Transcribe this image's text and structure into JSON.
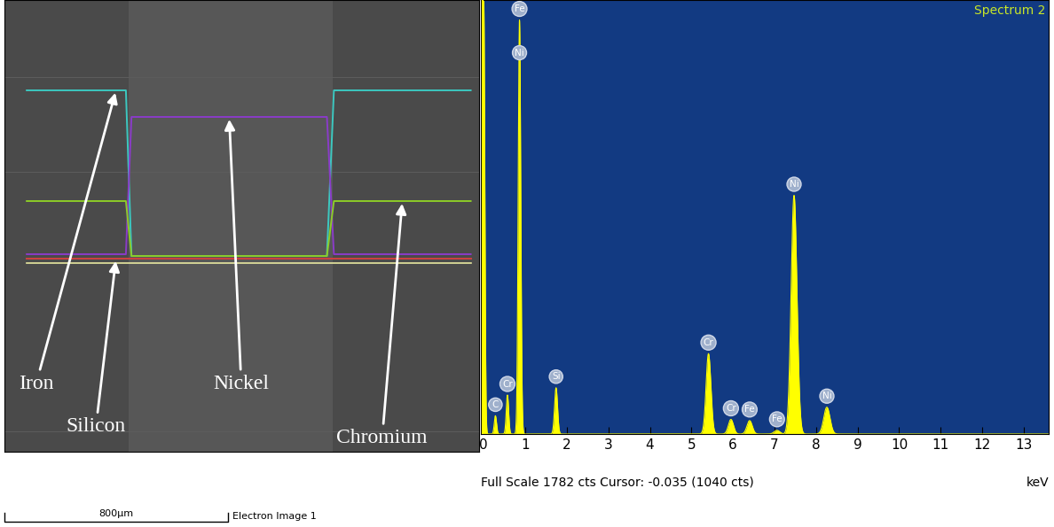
{
  "chart_data": [
    {
      "type": "line",
      "caption": "Electron Image 1",
      "x": [
        0,
        355,
        375,
        1075,
        1100,
        1590
      ],
      "xlim": [
        -80,
        1620
      ],
      "ylim": [
        -213,
        297
      ],
      "tick_labels": false,
      "scale_bar": {
        "length": 800,
        "label": "800µm"
      },
      "series": [
        {
          "name": "Iron",
          "color": "#3cc8c0",
          "values": [
            195,
            195,
            8,
            8,
            195,
            195
          ]
        },
        {
          "name": "Nickel",
          "color": "#8a3cc8",
          "values": [
            10,
            10,
            165,
            165,
            10,
            10
          ]
        },
        {
          "name": "Chromium",
          "color": "#8ccc28",
          "values": [
            70,
            70,
            8,
            8,
            70,
            70
          ]
        },
        {
          "name": "Silicon",
          "color": "#d04040",
          "values": [
            5,
            5,
            5,
            5,
            5,
            5
          ]
        }
      ]
    },
    {
      "type": "area",
      "title": "Spectrum 2",
      "xlabel": "keV",
      "status_text": "Full Scale 1782 cts Cursor: -0.035 (1040 cts)",
      "xlim": [
        -0.07,
        13.6
      ],
      "xticks": [
        0,
        1,
        2,
        3,
        4,
        5,
        6,
        7,
        8,
        9,
        10,
        11,
        12,
        13
      ],
      "ylim": [
        0,
        1782
      ],
      "tick_labels": "x",
      "color": "#ffff00",
      "cursor": -0.035,
      "peaks": [
        {
          "label": null,
          "energy": 0.0,
          "counts": 1782
        },
        {
          "label": "C",
          "energy": 0.28,
          "counts": 75
        },
        {
          "label": "Cr",
          "energy": 0.57,
          "counts": 160
        },
        {
          "label": "Fe",
          "energy": 0.86,
          "counts": 1700
        },
        {
          "label": "Ni",
          "energy": 0.86,
          "counts": 1520
        },
        {
          "label": "Si",
          "energy": 1.74,
          "counts": 190
        },
        {
          "label": "Cr",
          "energy": 5.41,
          "counts": 330
        },
        {
          "label": "Cr",
          "energy": 5.95,
          "counts": 60
        },
        {
          "label": "Fe",
          "energy": 6.4,
          "counts": 55
        },
        {
          "label": "Fe",
          "energy": 7.06,
          "counts": 15
        },
        {
          "label": "Ni",
          "energy": 7.47,
          "counts": 980
        },
        {
          "label": "Ni",
          "energy": 8.26,
          "counts": 110
        }
      ]
    }
  ]
}
